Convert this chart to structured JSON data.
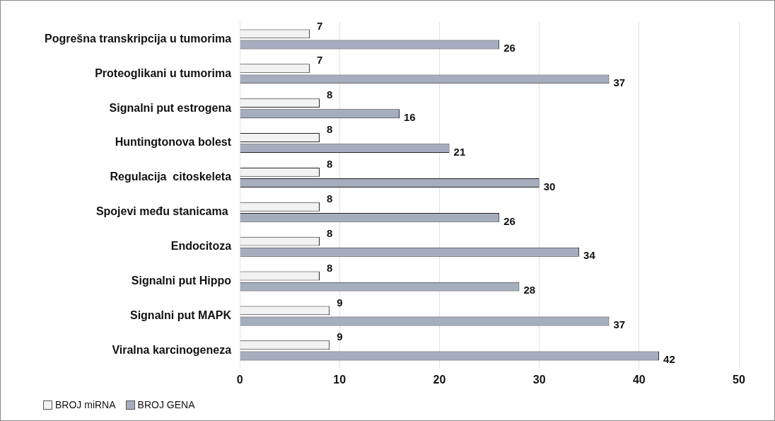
{
  "chart_data": {
    "type": "bar",
    "orientation": "horizontal",
    "categories": [
      "Pogrešna transkripcija u tumorima",
      "Proteoglikani u tumorima",
      "Signalni put estrogena",
      "Huntingtonova bolest",
      "Regulacija  citoskeleta",
      "Spojevi među stanicama ",
      "Endocitoza",
      "Signalni put Hippo",
      "Signalni put MAPK",
      "Viralna karcinogeneza"
    ],
    "series": [
      {
        "name": "BROJ miRNA",
        "color": "#f2f2f2",
        "values": [
          7,
          7,
          8,
          8,
          8,
          8,
          8,
          8,
          9,
          9
        ]
      },
      {
        "name": "BROJ GENA",
        "color": "#a6adbf",
        "values": [
          26,
          37,
          16,
          21,
          30,
          26,
          34,
          28,
          37,
          42
        ]
      }
    ],
    "xlim": [
      0,
      50
    ],
    "xticks": [
      0,
      10,
      20,
      30,
      40,
      50
    ],
    "grid": "x",
    "legend": "bottom left",
    "data_labels": true
  }
}
